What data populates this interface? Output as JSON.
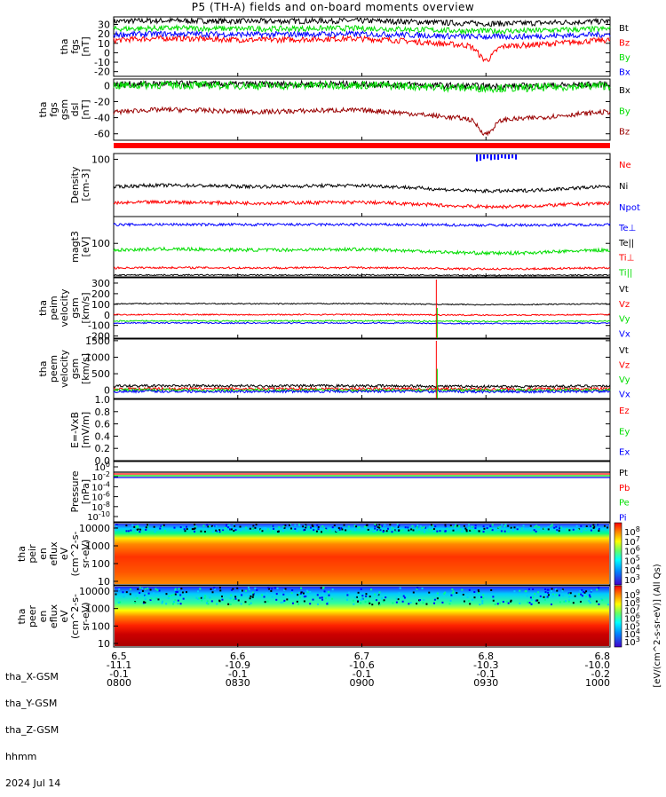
{
  "title": "P5 (TH-A) fields and on-board moments overview",
  "colors": {
    "black": "#000000",
    "red": "#ff0000",
    "green": "#00dd00",
    "blue": "#0000ff",
    "darkred": "#990000"
  },
  "chart_data": [
    {
      "type": "line",
      "id": "fgs",
      "ylabel": [
        "tha",
        "fgs",
        "[nT]"
      ],
      "ylim": [
        -25,
        38
      ],
      "ticks": [
        30,
        20,
        10,
        0,
        -10,
        -20
      ],
      "series": [
        {
          "name": "Bt",
          "color": "black",
          "base": 32,
          "amp": 3,
          "noise": 3
        },
        {
          "name": "Bz",
          "color": "red",
          "base": 10,
          "amp": 8,
          "noise": 3,
          "dip": -15
        },
        {
          "name": "By",
          "color": "green",
          "base": 24,
          "amp": 3,
          "noise": 3
        },
        {
          "name": "Bx",
          "color": "blue",
          "base": 18,
          "amp": 3,
          "noise": 3
        }
      ]
    },
    {
      "type": "line",
      "id": "fgsgsm",
      "ylabel": [
        "tha",
        "fgs",
        "gsm",
        "dsl",
        "[nT]"
      ],
      "ylim": [
        -68,
        8
      ],
      "ticks": [
        0,
        -20,
        -40,
        -60
      ],
      "series": [
        {
          "name": "Bx",
          "color": "black",
          "base": 0,
          "amp": 3,
          "noise": 4
        },
        {
          "name": "By",
          "color": "green",
          "base": -2,
          "amp": 4,
          "noise": 5
        },
        {
          "name": "Bz",
          "color": "darkred",
          "base": -38,
          "amp": 12,
          "noise": 3,
          "dip": -18
        }
      ]
    },
    {
      "type": "line",
      "id": "density",
      "ylabel": [
        "Density",
        "[cm-3]"
      ],
      "ylim": [
        0,
        110
      ],
      "ticks": [
        100
      ],
      "series": [
        {
          "name": "Ne",
          "color": "red",
          "base": 20,
          "amp": 8,
          "noise": 3
        },
        {
          "name": "Ni",
          "color": "black",
          "base": 48,
          "amp": 10,
          "noise": 3
        },
        {
          "name": "Npot",
          "color": "blue",
          "base": null
        }
      ]
    },
    {
      "type": "line",
      "id": "temp",
      "ylabel": [
        "magt3",
        "[eV]"
      ],
      "ylim": [
        0,
        180
      ],
      "ticks": [
        100
      ],
      "series": [
        {
          "name": "Te⊥",
          "color": "blue",
          "base": 155,
          "amp": 2,
          "noise": 4
        },
        {
          "name": "Te||",
          "color": "black",
          "base": 5,
          "amp": 1,
          "noise": 2
        },
        {
          "name": "Ti⊥",
          "color": "red",
          "base": 25,
          "amp": 4,
          "noise": 3
        },
        {
          "name": "Ti||",
          "color": "green",
          "base": 75,
          "amp": 12,
          "noise": 5
        }
      ]
    },
    {
      "type": "line",
      "id": "vi",
      "ylabel": [
        "tha",
        "peim",
        "velocity",
        "gsm",
        "[km/s]"
      ],
      "ylim": [
        -220,
        350
      ],
      "ticks": [
        300,
        200,
        100,
        0,
        -100,
        -200
      ],
      "series": [
        {
          "name": "Vt",
          "color": "black",
          "base": 100,
          "amp": 10,
          "noise": 5
        },
        {
          "name": "Vz",
          "color": "red",
          "base": 0,
          "amp": 5,
          "noise": 6
        },
        {
          "name": "Vy",
          "color": "green",
          "base": -60,
          "amp": 5,
          "noise": 6
        },
        {
          "name": "Vx",
          "color": "blue",
          "base": -80,
          "amp": 5,
          "noise": 6
        }
      ]
    },
    {
      "type": "line",
      "id": "ve",
      "ylabel": [
        "tha",
        "peem",
        "velocity",
        "gsm",
        "[km/s]"
      ],
      "ylim": [
        -250,
        1550
      ],
      "ticks": [
        1500,
        1000,
        500,
        0
      ],
      "series": [
        {
          "name": "Vt",
          "color": "black",
          "base": 120,
          "amp": 20,
          "noise": 40
        },
        {
          "name": "Vz",
          "color": "red",
          "base": 40,
          "amp": 10,
          "noise": 40
        },
        {
          "name": "Vy",
          "color": "green",
          "base": 0,
          "amp": 10,
          "noise": 40
        },
        {
          "name": "Vx",
          "color": "blue",
          "base": -40,
          "amp": 10,
          "noise": 40
        }
      ]
    },
    {
      "type": "line",
      "id": "efield",
      "ylabel": [
        "E=-VxB",
        "[mV/m]"
      ],
      "ylim": [
        0,
        1
      ],
      "ticks": [
        "1.0",
        "0.8",
        "0.6",
        "0.4",
        "0.2",
        "0.0"
      ],
      "series": [
        {
          "name": "Ez",
          "color": "red"
        },
        {
          "name": "Ey",
          "color": "green"
        },
        {
          "name": "Ex",
          "color": "blue"
        }
      ]
    },
    {
      "type": "line",
      "id": "pressure",
      "ylabel": [
        "Pressure",
        "[nPa]"
      ],
      "log": true,
      "ticks": [
        "10^0",
        "10^-2",
        "10^-4",
        "10^-6",
        "10^-8",
        "10^-10"
      ],
      "series": [
        {
          "name": "Pt",
          "color": "black",
          "base": 0.3
        },
        {
          "name": "Pb",
          "color": "red",
          "base": 0.2
        },
        {
          "name": "Pe",
          "color": "green",
          "base": 0.05
        },
        {
          "name": "Pi",
          "color": "blue",
          "base": 0.25
        }
      ]
    },
    {
      "type": "heatmap",
      "id": "peir",
      "ylabel": [
        "tha",
        "peir",
        "en",
        "eflux",
        "eV",
        "(cm^2-s-",
        "sr-eV)"
      ],
      "ticks": [
        10000,
        1000,
        100,
        10
      ],
      "colorbar_ticks": [
        "10^8",
        "10^7",
        "10^6",
        "10^5",
        "10^4",
        "10^3"
      ],
      "colorbar_label": "[eV/(cm^2-s-sr-eV)] (All Qs)"
    },
    {
      "type": "heatmap",
      "id": "peer",
      "ylabel": [
        "tha",
        "peer",
        "en",
        "eflux",
        "eV",
        "(cm^2-s-",
        "sr-eV)"
      ],
      "ticks": [
        10000,
        1000,
        100,
        10
      ],
      "colorbar_ticks": [
        "10^9",
        "10^8",
        "10^7",
        "10^6",
        "10^5",
        "10^4",
        "10^3"
      ]
    }
  ],
  "xaxis": {
    "row_labels": [
      "tha_X-GSM",
      "tha_Y-GSM",
      "tha_Z-GSM",
      "hhmm",
      "2024 Jul 14"
    ],
    "ticks": [
      {
        "x": "6.5",
        "y": "-11.1",
        "z": "-0.1",
        "t": "0800"
      },
      {
        "x": "6.6",
        "y": "-10.9",
        "z": "-0.1",
        "t": "0830"
      },
      {
        "x": "6.7",
        "y": "-10.6",
        "z": "-0.1",
        "t": "0900"
      },
      {
        "x": "6.8",
        "y": "-10.3",
        "z": "-0.1",
        "t": "0930"
      },
      {
        "x": "6.8",
        "y": "-10.0",
        "z": "-0.2",
        "t": "1000"
      }
    ]
  }
}
